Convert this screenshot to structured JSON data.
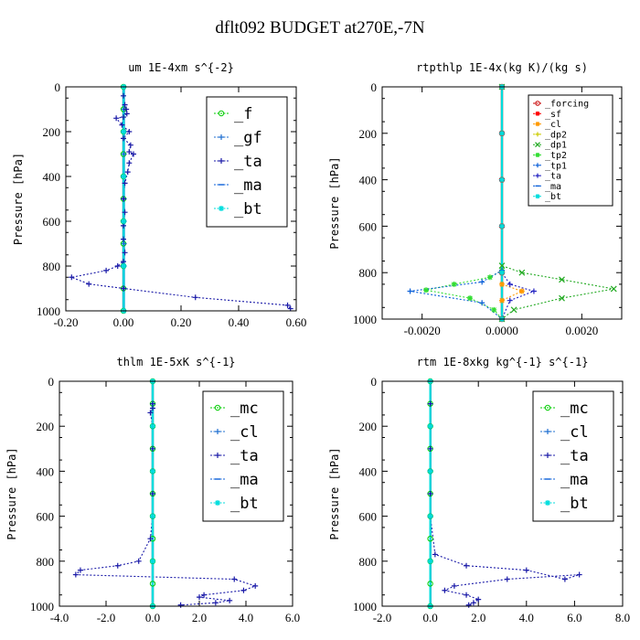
{
  "title": "dflt092  BUDGET at270E,-7N",
  "chart_data": [
    {
      "type": "line",
      "title": "um  1E-4xm s^{-2}",
      "ylabel": "Pressure [hPa]",
      "xlim": [
        -0.2,
        0.6
      ],
      "ylim": [
        1000,
        0
      ],
      "xticks": [
        -0.2,
        0.0,
        0.2,
        0.4,
        0.6
      ],
      "xtick_labels": [
        "-0.20",
        "0.00",
        "0.20",
        "0.40",
        "0.60"
      ],
      "yticks": [
        0,
        200,
        400,
        600,
        800,
        1000
      ],
      "legend_position": "upper-right",
      "legend_style": "large",
      "grid": false,
      "series": [
        {
          "name": "_f",
          "color": "#00cc00",
          "marker": "circle",
          "x": [
            0.0,
            0.0,
            0.0,
            0.0,
            0.0,
            0.0,
            0.0,
            0.0,
            0.0,
            0.0,
            0.0
          ],
          "y": [
            0,
            100,
            200,
            300,
            400,
            500,
            600,
            700,
            800,
            900,
            1000
          ]
        },
        {
          "name": "_gf",
          "color": "#1f6fd0",
          "marker": "plus",
          "x": [
            0.002,
            0.002,
            0.002,
            0.002,
            0.002,
            0.002,
            0.002,
            0.002,
            0.002,
            0.002,
            0.002
          ],
          "y": [
            0,
            100,
            200,
            300,
            400,
            500,
            600,
            700,
            800,
            900,
            1000
          ]
        },
        {
          "name": "_ta",
          "color": "#1a1aa8",
          "marker": "plus",
          "x": [
            0.0,
            0.005,
            0.01,
            0.012,
            0.0,
            -0.025,
            -0.005,
            0.02,
            0.0,
            0.025,
            0.02,
            0.035,
            0.02,
            0.015,
            0.005,
            0.0,
            0.005,
            0.0,
            0.0,
            0.005,
            0.0,
            -0.02,
            -0.06,
            -0.18,
            -0.12,
            0.0,
            0.25,
            0.57,
            0.58
          ],
          "y": [
            40,
            80,
            100,
            120,
            135,
            140,
            170,
            200,
            230,
            260,
            290,
            300,
            340,
            380,
            430,
            500,
            560,
            620,
            680,
            740,
            780,
            800,
            820,
            850,
            880,
            900,
            940,
            975,
            990
          ]
        },
        {
          "name": "_ma",
          "color": "#0a5fd8",
          "marker": "dash",
          "x": [
            0.0,
            0.0,
            0.0,
            0.0,
            0.0,
            0.0
          ],
          "y": [
            0,
            200,
            400,
            600,
            800,
            1000
          ]
        },
        {
          "name": "_bt",
          "color": "#00dddd",
          "marker": "star",
          "x": [
            0.001,
            0.001,
            0.001,
            0.001,
            0.001,
            0.001
          ],
          "y": [
            0,
            200,
            400,
            600,
            800,
            1000
          ]
        }
      ]
    },
    {
      "type": "line",
      "title": "rtpthlp  1E-4x(kg K)/(kg s)",
      "ylabel": "Pressure [hPa]",
      "xlim": [
        -0.003,
        0.003
      ],
      "ylim": [
        1000,
        0
      ],
      "xticks": [
        -0.002,
        0.0,
        0.002
      ],
      "xtick_labels": [
        "-0.0020",
        "0.0000",
        "0.0020"
      ],
      "yticks": [
        0,
        200,
        400,
        600,
        800,
        1000
      ],
      "legend_position": "upper-right",
      "legend_style": "small",
      "grid": false,
      "series": [
        {
          "name": "_forcing",
          "color": "#c80000",
          "marker": "circle",
          "x": [
            0.0,
            0.0,
            0.0,
            0.0,
            0.0,
            0.0
          ],
          "y": [
            0,
            200,
            400,
            600,
            800,
            1000
          ]
        },
        {
          "name": "_sf",
          "color": "#ff0000",
          "marker": "star",
          "x": [
            0.0,
            0.0,
            0.0,
            0.0,
            0.0,
            0.0
          ],
          "y": [
            0,
            200,
            400,
            600,
            800,
            1000
          ]
        },
        {
          "name": "_cl",
          "color": "#ff9900",
          "marker": "star",
          "x": [
            0.0,
            0.0,
            0.0,
            0.0005,
            0.0,
            0.0
          ],
          "y": [
            0,
            800,
            850,
            880,
            920,
            1000
          ]
        },
        {
          "name": "_dp2",
          "color": "#cccc00",
          "marker": "plus",
          "x": [
            0.0,
            0.0,
            0.0,
            0.0,
            0.0,
            0.0
          ],
          "y": [
            0,
            200,
            400,
            600,
            800,
            1000
          ]
        },
        {
          "name": "_dp1",
          "color": "#22aa22",
          "marker": "cross",
          "x": [
            0.0,
            0.0,
            0.0005,
            0.0015,
            0.0028,
            0.0015,
            0.0003,
            0.0
          ],
          "y": [
            0,
            770,
            800,
            830,
            870,
            910,
            960,
            1000
          ]
        },
        {
          "name": "_tp2",
          "color": "#33dd33",
          "marker": "star",
          "x": [
            0.0,
            0.0,
            -0.0003,
            -0.0012,
            -0.0019,
            -0.0008,
            -0.0002,
            0.0
          ],
          "y": [
            0,
            790,
            820,
            850,
            875,
            910,
            960,
            1000
          ]
        },
        {
          "name": "_tp1",
          "color": "#0a5fd8",
          "marker": "plus",
          "x": [
            0.0,
            0.0,
            -0.0005,
            -0.0023,
            -0.0005,
            0.0
          ],
          "y": [
            0,
            790,
            840,
            880,
            930,
            1000
          ]
        },
        {
          "name": "_ta",
          "color": "#2020c0",
          "marker": "plus",
          "x": [
            0.0,
            0.0,
            0.0002,
            0.0008,
            0.0002,
            0.0
          ],
          "y": [
            0,
            800,
            850,
            880,
            920,
            1000
          ]
        },
        {
          "name": "_ma",
          "color": "#0a5fd8",
          "marker": "dash",
          "x": [
            0.0,
            0.0,
            0.0,
            0.0,
            0.0,
            0.0
          ],
          "y": [
            0,
            200,
            400,
            600,
            800,
            1000
          ]
        },
        {
          "name": "_bt",
          "color": "#00dddd",
          "marker": "star",
          "x": [
            0.0,
            0.0,
            0.0,
            0.0,
            0.0,
            0.0
          ],
          "y": [
            0,
            200,
            400,
            600,
            800,
            1000
          ]
        }
      ]
    },
    {
      "type": "line",
      "title": "thlm  1E-5xK s^{-1}",
      "ylabel": "Pressure [hPa]",
      "xlim": [
        -4.0,
        6.0
      ],
      "ylim": [
        1000,
        0
      ],
      "xticks": [
        -4,
        -2,
        0,
        2,
        4,
        6
      ],
      "xtick_labels": [
        "-4.0",
        "-2.0",
        "0.0",
        "2.0",
        "4.0",
        "6.0"
      ],
      "yticks": [
        0,
        200,
        400,
        600,
        800,
        1000
      ],
      "legend_position": "upper-right",
      "legend_style": "large",
      "grid": false,
      "series": [
        {
          "name": "_mc",
          "color": "#00cc00",
          "marker": "circle",
          "x": [
            0.0,
            0.0,
            0.0,
            0.0,
            0.0,
            0.0,
            0.0,
            0.0,
            0.0,
            0.0,
            0.0
          ],
          "y": [
            0,
            100,
            200,
            300,
            400,
            500,
            600,
            700,
            800,
            900,
            1000
          ]
        },
        {
          "name": "_cl",
          "color": "#1f6fd0",
          "marker": "plus",
          "x": [
            0.0,
            0.0,
            0.0,
            0.0,
            0.0,
            0.0
          ],
          "y": [
            0,
            200,
            400,
            600,
            800,
            1000
          ]
        },
        {
          "name": "_ta",
          "color": "#1a1aa8",
          "marker": "plus",
          "x": [
            0.0,
            0.0,
            0.0,
            -0.1,
            0.0,
            0.0,
            0.0,
            0.0,
            0.0,
            -0.1,
            -0.6,
            -1.5,
            -3.1,
            -3.3,
            3.5,
            4.4,
            3.9,
            2.2,
            2.0,
            3.3,
            2.7,
            1.2
          ],
          "y": [
            0,
            100,
            120,
            140,
            200,
            300,
            400,
            500,
            600,
            700,
            800,
            820,
            840,
            860,
            880,
            910,
            930,
            950,
            960,
            975,
            985,
            995
          ]
        },
        {
          "name": "_ma",
          "color": "#0a5fd8",
          "marker": "dash",
          "x": [
            0.0,
            0.0,
            0.0,
            0.0,
            0.0,
            0.0
          ],
          "y": [
            0,
            200,
            400,
            600,
            800,
            1000
          ]
        },
        {
          "name": "_bt",
          "color": "#00dddd",
          "marker": "star",
          "x": [
            0.0,
            0.0,
            0.0,
            0.0,
            0.0,
            0.0
          ],
          "y": [
            0,
            200,
            400,
            600,
            800,
            1000
          ]
        }
      ]
    },
    {
      "type": "line",
      "title": "rtm  1E-8xkg kg^{-1} s^{-1}",
      "ylabel": "Pressure [hPa]",
      "xlim": [
        -2.0,
        8.0
      ],
      "ylim": [
        1000,
        0
      ],
      "xticks": [
        -2,
        0,
        2,
        4,
        6,
        8
      ],
      "xtick_labels": [
        "-2.0",
        "0.0",
        "2.0",
        "4.0",
        "6.0",
        "8.0"
      ],
      "yticks": [
        0,
        200,
        400,
        600,
        800,
        1000
      ],
      "legend_position": "upper-right",
      "legend_style": "large",
      "grid": false,
      "series": [
        {
          "name": "_mc",
          "color": "#00cc00",
          "marker": "circle",
          "x": [
            0.0,
            0.0,
            0.0,
            0.0,
            0.0,
            0.0,
            0.0,
            0.0,
            0.0,
            0.0,
            0.0
          ],
          "y": [
            0,
            100,
            200,
            300,
            400,
            500,
            600,
            700,
            800,
            900,
            1000
          ]
        },
        {
          "name": "_cl",
          "color": "#1f6fd0",
          "marker": "plus",
          "x": [
            0.0,
            0.0,
            0.0,
            0.0,
            0.0,
            0.0
          ],
          "y": [
            0,
            200,
            400,
            600,
            800,
            1000
          ]
        },
        {
          "name": "_ta",
          "color": "#1a1aa8",
          "marker": "plus",
          "x": [
            0.0,
            0.0,
            0.0,
            0.0,
            0.0,
            0.0,
            0.0,
            0.2,
            1.5,
            4.0,
            5.6,
            6.2,
            3.2,
            1.0,
            0.6,
            1.5,
            2.0,
            1.8,
            1.6
          ],
          "y": [
            0,
            100,
            200,
            300,
            400,
            500,
            600,
            770,
            820,
            840,
            880,
            860,
            880,
            910,
            930,
            950,
            970,
            985,
            995
          ]
        },
        {
          "name": "_ma",
          "color": "#0a5fd8",
          "marker": "dash",
          "x": [
            0.0,
            0.0,
            0.0,
            0.0,
            0.0,
            0.0
          ],
          "y": [
            0,
            200,
            400,
            600,
            800,
            1000
          ]
        },
        {
          "name": "_bt",
          "color": "#00dddd",
          "marker": "star",
          "x": [
            0.0,
            0.0,
            0.0,
            0.0,
            0.0,
            0.0
          ],
          "y": [
            0,
            200,
            400,
            600,
            800,
            1000
          ]
        }
      ]
    }
  ]
}
